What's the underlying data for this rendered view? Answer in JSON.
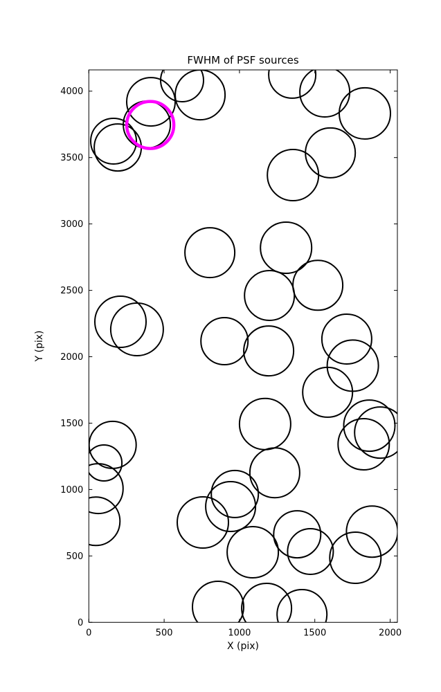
{
  "chart_data": {
    "type": "scatter",
    "title": "FWHM of PSF sources",
    "xlabel": "X (pix)",
    "ylabel": "Y (pix)",
    "xlim": [
      0,
      2048
    ],
    "ylim": [
      0,
      4160
    ],
    "xticks": [
      0,
      500,
      1000,
      1500,
      2000
    ],
    "yticks": [
      0,
      500,
      1000,
      1500,
      2000,
      2500,
      3000,
      3500,
      4000
    ],
    "grid": false,
    "legend": "none",
    "marker": "open-circle",
    "colors": {
      "default": "#000000",
      "highlight": "#ff00ff",
      "background": "#ffffff"
    },
    "stroke_px": {
      "default": 2,
      "highlight": 4.5
    },
    "note": "x,y in data pixels of detector; r is rendered circle radius in screen px (proportional to FWHM)",
    "points": [
      {
        "x": 619,
        "y": 4082,
        "r": 31
      },
      {
        "x": 739,
        "y": 3972,
        "r": 36
      },
      {
        "x": 412,
        "y": 3920,
        "r": 35
      },
      {
        "x": 385,
        "y": 3748,
        "r": 34
      },
      {
        "x": 164,
        "y": 3623,
        "r": 33
      },
      {
        "x": 192,
        "y": 3576,
        "r": 34
      },
      {
        "x": 1350,
        "y": 4124,
        "r": 34
      },
      {
        "x": 1566,
        "y": 3993,
        "r": 36
      },
      {
        "x": 1832,
        "y": 3832,
        "r": 37
      },
      {
        "x": 1603,
        "y": 3535,
        "r": 36
      },
      {
        "x": 1355,
        "y": 3368,
        "r": 37
      },
      {
        "x": 803,
        "y": 2784,
        "r": 36
      },
      {
        "x": 1309,
        "y": 2821,
        "r": 37
      },
      {
        "x": 1199,
        "y": 2461,
        "r": 36
      },
      {
        "x": 1520,
        "y": 2538,
        "r": 36
      },
      {
        "x": 210,
        "y": 2263,
        "r": 37
      },
      {
        "x": 320,
        "y": 2206,
        "r": 38
      },
      {
        "x": 900,
        "y": 2117,
        "r": 34
      },
      {
        "x": 1194,
        "y": 2044,
        "r": 36
      },
      {
        "x": 1712,
        "y": 2133,
        "r": 36
      },
      {
        "x": 1752,
        "y": 1933,
        "r": 37
      },
      {
        "x": 1585,
        "y": 1732,
        "r": 36
      },
      {
        "x": 1170,
        "y": 1493,
        "r": 37
      },
      {
        "x": 1862,
        "y": 1481,
        "r": 37
      },
      {
        "x": 1934,
        "y": 1429,
        "r": 37
      },
      {
        "x": 1824,
        "y": 1341,
        "r": 37
      },
      {
        "x": 158,
        "y": 1336,
        "r": 34
      },
      {
        "x": 100,
        "y": 1200,
        "r": 26
      },
      {
        "x": 62,
        "y": 1007,
        "r": 36
      },
      {
        "x": 46,
        "y": 761,
        "r": 35
      },
      {
        "x": 969,
        "y": 966,
        "r": 34
      },
      {
        "x": 941,
        "y": 872,
        "r": 36
      },
      {
        "x": 757,
        "y": 752,
        "r": 37
      },
      {
        "x": 1234,
        "y": 1126,
        "r": 36
      },
      {
        "x": 1383,
        "y": 663,
        "r": 34
      },
      {
        "x": 1471,
        "y": 533,
        "r": 33
      },
      {
        "x": 1880,
        "y": 683,
        "r": 37
      },
      {
        "x": 1769,
        "y": 486,
        "r": 37
      },
      {
        "x": 1088,
        "y": 528,
        "r": 37
      },
      {
        "x": 858,
        "y": 116,
        "r": 37
      },
      {
        "x": 1180,
        "y": 106,
        "r": 36
      },
      {
        "x": 1415,
        "y": 59,
        "r": 36
      },
      {
        "x": 408,
        "y": 3745,
        "r": 34,
        "highlight": true
      }
    ]
  }
}
